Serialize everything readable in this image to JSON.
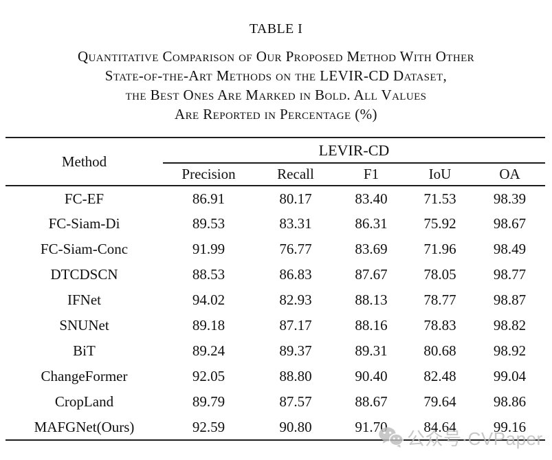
{
  "title": "TABLE I",
  "caption_lines": [
    "Quantitative Comparison of Our Proposed Method With Other",
    "State-of-the-Art Methods on the LEVIR-CD Dataset,",
    "the Best Ones Are Marked in Bold. All Values",
    "Are Reported in Percentage (%)"
  ],
  "table": {
    "method_header": "Method",
    "group_header": "LEVIR-CD",
    "columns": [
      "Precision",
      "Recall",
      "F1",
      "IoU",
      "OA"
    ],
    "rows": [
      {
        "method": "FC-EF",
        "values": [
          "86.91",
          "80.17",
          "83.40",
          "71.53",
          "98.39"
        ],
        "bold": [
          false,
          false,
          false,
          false,
          false
        ]
      },
      {
        "method": "FC-Siam-Di",
        "values": [
          "89.53",
          "83.31",
          "86.31",
          "75.92",
          "98.67"
        ],
        "bold": [
          false,
          false,
          false,
          false,
          false
        ]
      },
      {
        "method": "FC-Siam-Conc",
        "values": [
          "91.99",
          "76.77",
          "83.69",
          "71.96",
          "98.49"
        ],
        "bold": [
          false,
          false,
          false,
          false,
          false
        ]
      },
      {
        "method": "DTCDSCN",
        "values": [
          "88.53",
          "86.83",
          "87.67",
          "78.05",
          "98.77"
        ],
        "bold": [
          false,
          false,
          false,
          false,
          false
        ]
      },
      {
        "method": "IFNet",
        "values": [
          "94.02",
          "82.93",
          "88.13",
          "78.77",
          "98.87"
        ],
        "bold": [
          true,
          false,
          false,
          false,
          false
        ]
      },
      {
        "method": "SNUNet",
        "values": [
          "89.18",
          "87.17",
          "88.16",
          "78.83",
          "98.82"
        ],
        "bold": [
          false,
          false,
          false,
          false,
          false
        ]
      },
      {
        "method": "BiT",
        "values": [
          "89.24",
          "89.37",
          "89.31",
          "80.68",
          "98.92"
        ],
        "bold": [
          false,
          false,
          false,
          false,
          false
        ]
      },
      {
        "method": "ChangeFormer",
        "values": [
          "92.05",
          "88.80",
          "90.40",
          "82.48",
          "99.04"
        ],
        "bold": [
          false,
          false,
          false,
          false,
          false
        ]
      },
      {
        "method": "CropLand",
        "values": [
          "89.79",
          "87.57",
          "88.67",
          "79.64",
          "98.86"
        ],
        "bold": [
          false,
          false,
          false,
          false,
          false
        ]
      },
      {
        "method": "MAFGNet(Ours)",
        "values": [
          "92.59",
          "90.80",
          "91.70",
          "84.64",
          "99.16"
        ],
        "bold": [
          false,
          true,
          true,
          true,
          true
        ]
      }
    ]
  },
  "watermark": {
    "text": "公众号·CVPaper",
    "icon": "wechat-icon",
    "color": "#bcbcbc"
  },
  "colors": {
    "background": "#ffffff",
    "text": "#101010",
    "rule": "#1c1c1c"
  }
}
